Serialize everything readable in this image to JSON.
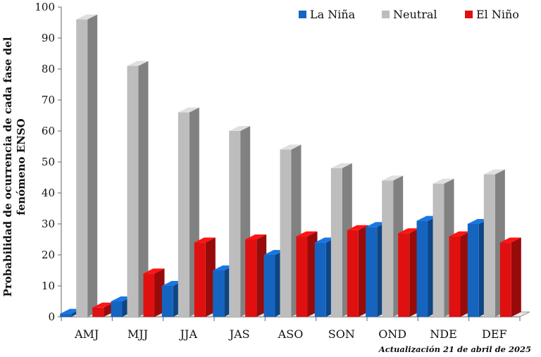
{
  "chart_data": {
    "type": "bar",
    "ylabel_lines": [
      "Probabilidad de ocurrencia  de cada fase del",
      "fenómeno ENSO"
    ],
    "ylim": [
      0,
      100
    ],
    "yticks": [
      0,
      10,
      20,
      30,
      40,
      50,
      60,
      70,
      80,
      90,
      100
    ],
    "grid": false,
    "legend_position": "top-right",
    "categories": [
      "AMJ",
      "MJJ",
      "JJA",
      "JAS",
      "ASO",
      "SON",
      "OND",
      "NDE",
      "DEF"
    ],
    "series": [
      {
        "name": "La Niña",
        "color": "#1565c0",
        "values": [
          1,
          5,
          10,
          15,
          20,
          24,
          29,
          31,
          30
        ]
      },
      {
        "name": "Neutral",
        "color": "#bdbdbd",
        "values": [
          96,
          81,
          66,
          60,
          54,
          48,
          44,
          43,
          46
        ]
      },
      {
        "name": "El Niño",
        "color": "#e01010",
        "values": [
          3,
          14,
          24,
          25,
          26,
          28,
          27,
          26,
          24
        ]
      }
    ],
    "footnote": "Actualización 21 de abril de 2025"
  }
}
